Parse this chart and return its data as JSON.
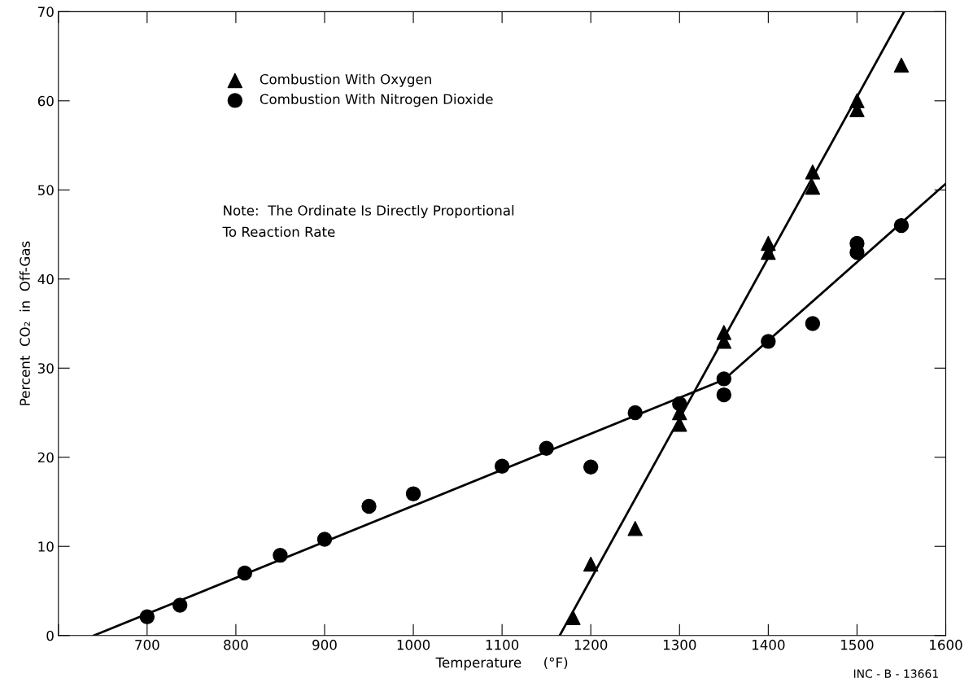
{
  "chart_data": {
    "type": "scatter",
    "xlabel": "Temperature     (°F)",
    "ylabel": "Percent  CO₂  in  Off-Gas",
    "xlim": [
      600,
      1600
    ],
    "xticks": [
      {
        "value": 600,
        "label": null
      },
      700,
      800,
      900,
      1000,
      1100,
      1200,
      1300,
      1400,
      1500,
      1600
    ],
    "ylim": [
      0,
      70
    ],
    "yticks": [
      0,
      10,
      20,
      30,
      40,
      50,
      60,
      70
    ],
    "grid": false,
    "legend": "top left",
    "series": [
      {
        "name": "Combustion With Oxygen",
        "color": "#000000",
        "marker": "triangle",
        "x": [
          1180,
          1200,
          1250,
          1300,
          1300,
          1350,
          1350,
          1400,
          1400,
          1450,
          1450,
          1500,
          1500,
          1550
        ],
        "values": [
          2,
          8,
          12,
          25,
          23.7,
          34,
          33,
          44,
          43,
          52,
          50.3,
          60,
          59,
          64
        ]
      },
      {
        "name": "Combustion With Nitrogen Dioxide",
        "color": "#000000",
        "marker": "circle",
        "x": [
          700,
          737,
          810,
          850,
          900,
          950,
          1000,
          1100,
          1150,
          1200,
          1250,
          1300,
          1350,
          1350,
          1400,
          1450,
          1500,
          1500,
          1550
        ],
        "values": [
          2.1,
          3.4,
          7,
          9,
          10.8,
          14.5,
          15.9,
          19,
          21,
          18.9,
          25,
          26,
          28.8,
          27,
          33,
          35,
          44,
          43,
          46
        ]
      },
      {
        "type": "line",
        "color": "#000000",
        "marker": "none",
        "line_style": "solid",
        "x": [
          1165,
          1553
        ],
        "values": [
          0,
          70
        ]
      },
      {
        "type": "line",
        "color": "#000000",
        "marker": "none",
        "line_style": "solid",
        "x": [
          640,
          1350,
          1600
        ],
        "values": [
          0,
          28.7,
          50.7
        ]
      }
    ],
    "annotations": [
      "Note:  The Ordinate Is Directly Proportional\nTo Reaction Rate",
      "INC - B - 13661"
    ]
  }
}
